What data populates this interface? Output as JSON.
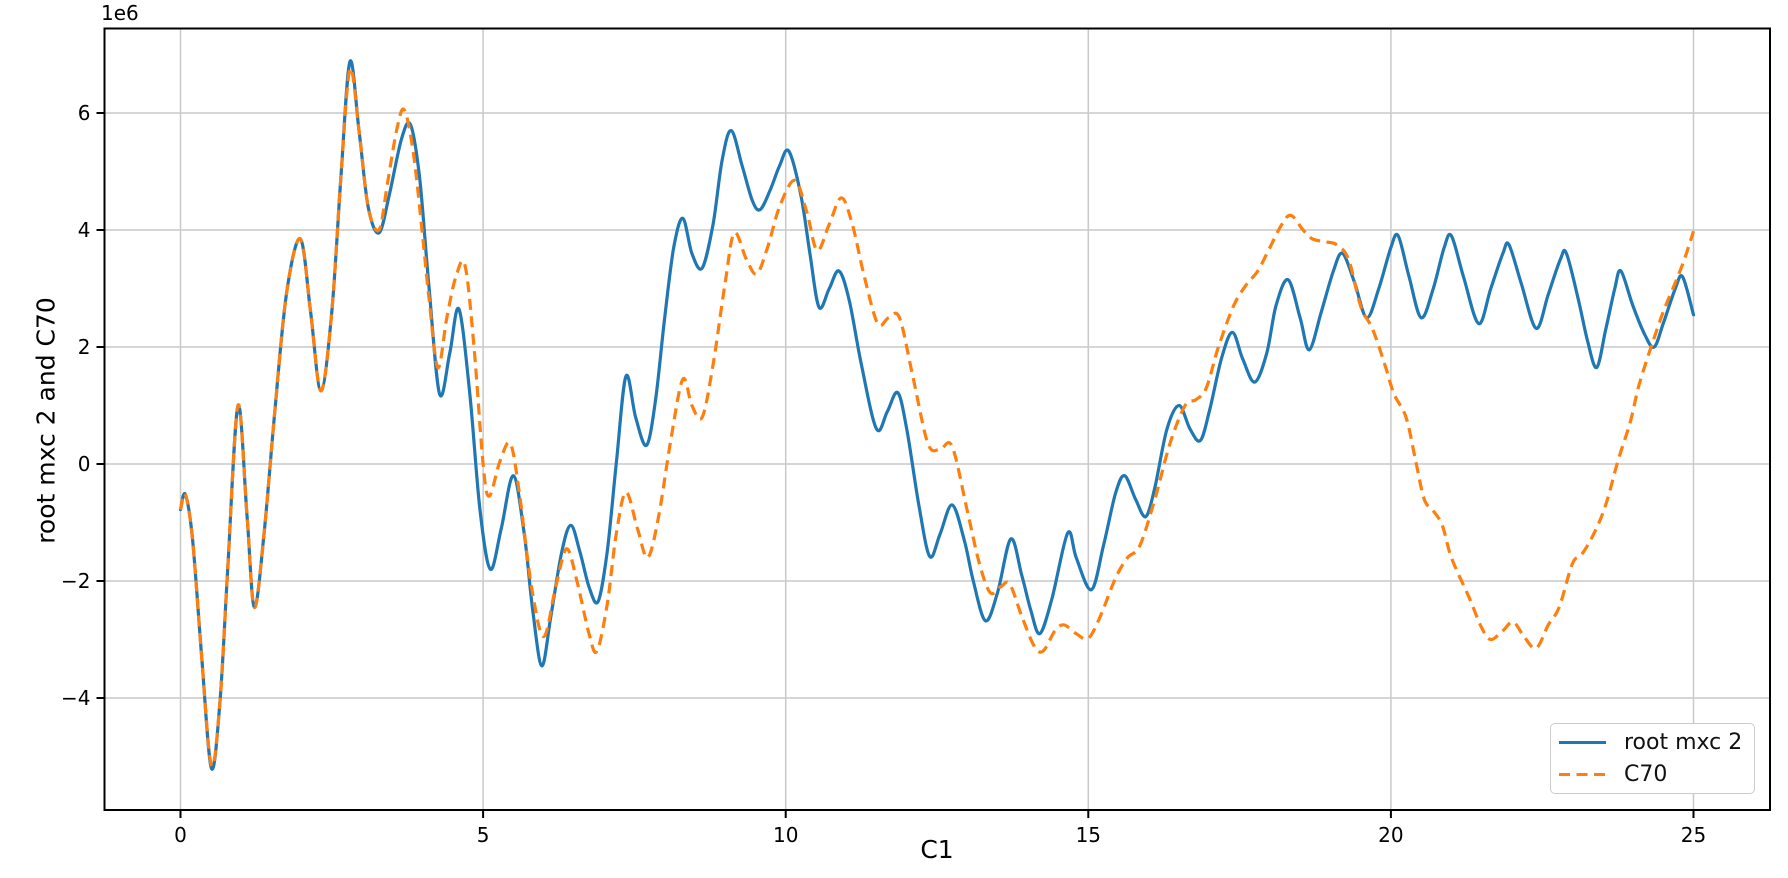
{
  "chart_data": {
    "type": "line",
    "title": "",
    "xlabel": "C1",
    "ylabel": "root mxc 2 and C70",
    "y_offset_text": "1e6",
    "y_unit_multiplier": 1000000,
    "xlim": [
      -1.24,
      26.27
    ],
    "ylim": [
      -5.92,
      7.45
    ],
    "x_ticks": [
      0,
      5,
      10,
      15,
      20,
      25
    ],
    "x_tick_labels": [
      "0",
      "5",
      "10",
      "15",
      "20",
      "25"
    ],
    "y_ticks": [
      6,
      4,
      2,
      0,
      -2,
      -4
    ],
    "y_tick_labels": [
      "6",
      "4",
      "2",
      "0",
      "−2",
      "−4"
    ],
    "grid": true,
    "colors": {
      "grid": "#c9c9c9",
      "spine": "#000000",
      "text": "#000000",
      "background": "#ffffff"
    },
    "legend": {
      "position": "lower right",
      "entries": [
        {
          "label": "root mxc 2",
          "color": "#1f77b4",
          "linestyle": "solid"
        },
        {
          "label": "C70",
          "color": "#ff7f0e",
          "linestyle": "dashed"
        }
      ]
    },
    "series": [
      {
        "name": "root mxc 2",
        "color": "#1f77b4",
        "linestyle": "solid",
        "points": [
          [
            0.0,
            -0.78
          ],
          [
            0.08,
            -0.52
          ],
          [
            0.2,
            -1.3
          ],
          [
            0.35,
            -3.3
          ],
          [
            0.51,
            -5.2
          ],
          [
            0.65,
            -4.1
          ],
          [
            0.78,
            -1.8
          ],
          [
            0.95,
            1.0
          ],
          [
            1.1,
            -0.9
          ],
          [
            1.22,
            -2.45
          ],
          [
            1.38,
            -1.2
          ],
          [
            1.55,
            0.8
          ],
          [
            1.75,
            2.9
          ],
          [
            1.98,
            3.85
          ],
          [
            2.15,
            2.6
          ],
          [
            2.32,
            1.25
          ],
          [
            2.5,
            2.6
          ],
          [
            2.65,
            4.9
          ],
          [
            2.8,
            6.88
          ],
          [
            2.95,
            5.7
          ],
          [
            3.1,
            4.4
          ],
          [
            3.28,
            3.95
          ],
          [
            3.45,
            4.6
          ],
          [
            3.65,
            5.55
          ],
          [
            3.8,
            5.8
          ],
          [
            3.95,
            4.9
          ],
          [
            4.1,
            3.1
          ],
          [
            4.28,
            1.2
          ],
          [
            4.45,
            1.9
          ],
          [
            4.6,
            2.65
          ],
          [
            4.78,
            1.2
          ],
          [
            4.95,
            -0.8
          ],
          [
            5.12,
            -1.8
          ],
          [
            5.3,
            -1.1
          ],
          [
            5.5,
            -0.2
          ],
          [
            5.68,
            -1.2
          ],
          [
            5.82,
            -2.5
          ],
          [
            5.97,
            -3.45
          ],
          [
            6.12,
            -2.6
          ],
          [
            6.3,
            -1.5
          ],
          [
            6.45,
            -1.05
          ],
          [
            6.6,
            -1.5
          ],
          [
            6.75,
            -2.1
          ],
          [
            6.9,
            -2.35
          ],
          [
            7.05,
            -1.5
          ],
          [
            7.2,
            0.0
          ],
          [
            7.36,
            1.5
          ],
          [
            7.52,
            0.8
          ],
          [
            7.7,
            0.32
          ],
          [
            7.85,
            1.1
          ],
          [
            8.0,
            2.5
          ],
          [
            8.15,
            3.7
          ],
          [
            8.3,
            4.2
          ],
          [
            8.45,
            3.6
          ],
          [
            8.62,
            3.35
          ],
          [
            8.8,
            4.1
          ],
          [
            8.95,
            5.2
          ],
          [
            9.1,
            5.7
          ],
          [
            9.28,
            5.1
          ],
          [
            9.45,
            4.5
          ],
          [
            9.58,
            4.35
          ],
          [
            9.75,
            4.7
          ],
          [
            9.9,
            5.1
          ],
          [
            10.05,
            5.35
          ],
          [
            10.25,
            4.6
          ],
          [
            10.4,
            3.6
          ],
          [
            10.55,
            2.68
          ],
          [
            10.72,
            3.0
          ],
          [
            10.88,
            3.3
          ],
          [
            11.05,
            2.8
          ],
          [
            11.25,
            1.7
          ],
          [
            11.5,
            0.6
          ],
          [
            11.68,
            0.9
          ],
          [
            11.85,
            1.22
          ],
          [
            12.0,
            0.6
          ],
          [
            12.2,
            -0.7
          ],
          [
            12.38,
            -1.58
          ],
          [
            12.55,
            -1.2
          ],
          [
            12.75,
            -0.7
          ],
          [
            12.95,
            -1.3
          ],
          [
            13.1,
            -2.0
          ],
          [
            13.3,
            -2.68
          ],
          [
            13.5,
            -2.2
          ],
          [
            13.72,
            -1.28
          ],
          [
            13.9,
            -1.9
          ],
          [
            14.05,
            -2.5
          ],
          [
            14.2,
            -2.9
          ],
          [
            14.4,
            -2.3
          ],
          [
            14.66,
            -1.18
          ],
          [
            14.8,
            -1.6
          ],
          [
            15.05,
            -2.15
          ],
          [
            15.25,
            -1.4
          ],
          [
            15.45,
            -0.5
          ],
          [
            15.6,
            -0.2
          ],
          [
            15.78,
            -0.6
          ],
          [
            15.95,
            -0.9
          ],
          [
            16.1,
            -0.4
          ],
          [
            16.3,
            0.6
          ],
          [
            16.5,
            1.0
          ],
          [
            16.68,
            0.6
          ],
          [
            16.85,
            0.4
          ],
          [
            17.0,
            0.9
          ],
          [
            17.2,
            1.8
          ],
          [
            17.38,
            2.25
          ],
          [
            17.55,
            1.8
          ],
          [
            17.75,
            1.4
          ],
          [
            17.95,
            1.9
          ],
          [
            18.1,
            2.7
          ],
          [
            18.3,
            3.15
          ],
          [
            18.5,
            2.5
          ],
          [
            18.65,
            1.95
          ],
          [
            18.85,
            2.6
          ],
          [
            19.05,
            3.3
          ],
          [
            19.2,
            3.6
          ],
          [
            19.4,
            3.1
          ],
          [
            19.6,
            2.5
          ],
          [
            19.8,
            3.0
          ],
          [
            20.0,
            3.7
          ],
          [
            20.12,
            3.9
          ],
          [
            20.3,
            3.2
          ],
          [
            20.5,
            2.5
          ],
          [
            20.7,
            3.0
          ],
          [
            20.88,
            3.7
          ],
          [
            21.0,
            3.9
          ],
          [
            21.2,
            3.2
          ],
          [
            21.45,
            2.4
          ],
          [
            21.65,
            3.0
          ],
          [
            21.85,
            3.6
          ],
          [
            21.95,
            3.75
          ],
          [
            22.15,
            3.1
          ],
          [
            22.4,
            2.32
          ],
          [
            22.6,
            2.9
          ],
          [
            22.8,
            3.5
          ],
          [
            22.9,
            3.6
          ],
          [
            23.1,
            2.8
          ],
          [
            23.25,
            2.1
          ],
          [
            23.4,
            1.65
          ],
          [
            23.55,
            2.3
          ],
          [
            23.7,
            3.0
          ],
          [
            23.8,
            3.3
          ],
          [
            24.0,
            2.7
          ],
          [
            24.2,
            2.2
          ],
          [
            24.35,
            2.0
          ],
          [
            24.5,
            2.4
          ],
          [
            24.7,
            3.0
          ],
          [
            24.82,
            3.2
          ],
          [
            25.0,
            2.55
          ]
        ]
      },
      {
        "name": "C70",
        "color": "#ff7f0e",
        "linestyle": "dashed",
        "points": [
          [
            0.0,
            -0.78
          ],
          [
            0.08,
            -0.52
          ],
          [
            0.2,
            -1.3
          ],
          [
            0.35,
            -3.3
          ],
          [
            0.51,
            -5.15
          ],
          [
            0.65,
            -4.1
          ],
          [
            0.78,
            -1.8
          ],
          [
            0.95,
            1.0
          ],
          [
            1.1,
            -0.9
          ],
          [
            1.22,
            -2.45
          ],
          [
            1.38,
            -1.2
          ],
          [
            1.55,
            0.8
          ],
          [
            1.75,
            2.9
          ],
          [
            1.98,
            3.85
          ],
          [
            2.15,
            2.6
          ],
          [
            2.32,
            1.25
          ],
          [
            2.5,
            2.6
          ],
          [
            2.65,
            4.9
          ],
          [
            2.8,
            6.75
          ],
          [
            2.95,
            5.7
          ],
          [
            3.1,
            4.4
          ],
          [
            3.28,
            4.0
          ],
          [
            3.42,
            4.8
          ],
          [
            3.58,
            5.75
          ],
          [
            3.7,
            6.05
          ],
          [
            3.85,
            5.3
          ],
          [
            4.0,
            3.9
          ],
          [
            4.1,
            2.9
          ],
          [
            4.25,
            1.65
          ],
          [
            4.4,
            2.5
          ],
          [
            4.55,
            3.2
          ],
          [
            4.7,
            3.4
          ],
          [
            4.85,
            2.0
          ],
          [
            5.0,
            0.0
          ],
          [
            5.1,
            -0.55
          ],
          [
            5.28,
            0.05
          ],
          [
            5.45,
            0.35
          ],
          [
            5.6,
            -0.5
          ],
          [
            5.8,
            -2.1
          ],
          [
            6.0,
            -2.95
          ],
          [
            6.2,
            -2.1
          ],
          [
            6.38,
            -1.45
          ],
          [
            6.55,
            -2.0
          ],
          [
            6.75,
            -2.9
          ],
          [
            6.88,
            -3.2
          ],
          [
            7.05,
            -2.4
          ],
          [
            7.2,
            -1.2
          ],
          [
            7.36,
            -0.48
          ],
          [
            7.55,
            -1.1
          ],
          [
            7.72,
            -1.6
          ],
          [
            7.9,
            -0.9
          ],
          [
            8.1,
            0.4
          ],
          [
            8.3,
            1.45
          ],
          [
            8.45,
            1.0
          ],
          [
            8.62,
            0.8
          ],
          [
            8.8,
            1.7
          ],
          [
            9.0,
            3.1
          ],
          [
            9.15,
            3.95
          ],
          [
            9.35,
            3.5
          ],
          [
            9.52,
            3.25
          ],
          [
            9.7,
            3.7
          ],
          [
            9.9,
            4.4
          ],
          [
            10.15,
            4.85
          ],
          [
            10.35,
            4.3
          ],
          [
            10.52,
            3.65
          ],
          [
            10.72,
            4.1
          ],
          [
            10.92,
            4.55
          ],
          [
            11.1,
            4.1
          ],
          [
            11.3,
            3.2
          ],
          [
            11.52,
            2.4
          ],
          [
            11.7,
            2.5
          ],
          [
            11.88,
            2.5
          ],
          [
            12.1,
            1.5
          ],
          [
            12.35,
            0.35
          ],
          [
            12.55,
            0.25
          ],
          [
            12.75,
            0.3
          ],
          [
            13.0,
            -0.8
          ],
          [
            13.2,
            -1.7
          ],
          [
            13.38,
            -2.2
          ],
          [
            13.55,
            -2.1
          ],
          [
            13.7,
            -2.05
          ],
          [
            13.9,
            -2.6
          ],
          [
            14.1,
            -3.1
          ],
          [
            14.25,
            -3.2
          ],
          [
            14.45,
            -2.85
          ],
          [
            14.6,
            -2.75
          ],
          [
            14.8,
            -2.9
          ],
          [
            15.0,
            -2.98
          ],
          [
            15.2,
            -2.6
          ],
          [
            15.45,
            -1.95
          ],
          [
            15.65,
            -1.6
          ],
          [
            15.85,
            -1.4
          ],
          [
            16.1,
            -0.6
          ],
          [
            16.35,
            0.35
          ],
          [
            16.6,
            1.0
          ],
          [
            16.78,
            1.1
          ],
          [
            16.95,
            1.3
          ],
          [
            17.15,
            2.0
          ],
          [
            17.4,
            2.7
          ],
          [
            17.6,
            3.05
          ],
          [
            17.8,
            3.3
          ],
          [
            18.0,
            3.7
          ],
          [
            18.2,
            4.1
          ],
          [
            18.35,
            4.25
          ],
          [
            18.55,
            4.0
          ],
          [
            18.7,
            3.85
          ],
          [
            18.9,
            3.8
          ],
          [
            19.1,
            3.75
          ],
          [
            19.3,
            3.5
          ],
          [
            19.5,
            2.7
          ],
          [
            19.7,
            2.3
          ],
          [
            19.9,
            1.7
          ],
          [
            20.05,
            1.2
          ],
          [
            20.25,
            0.8
          ],
          [
            20.4,
            0.1
          ],
          [
            20.55,
            -0.6
          ],
          [
            20.7,
            -0.8
          ],
          [
            20.85,
            -1.05
          ],
          [
            21.0,
            -1.6
          ],
          [
            21.3,
            -2.3
          ],
          [
            21.5,
            -2.8
          ],
          [
            21.65,
            -3.0
          ],
          [
            21.85,
            -2.85
          ],
          [
            22.02,
            -2.7
          ],
          [
            22.2,
            -2.95
          ],
          [
            22.4,
            -3.15
          ],
          [
            22.6,
            -2.75
          ],
          [
            22.78,
            -2.45
          ],
          [
            23.0,
            -1.7
          ],
          [
            23.15,
            -1.55
          ],
          [
            23.35,
            -1.2
          ],
          [
            23.55,
            -0.7
          ],
          [
            23.75,
            0.05
          ],
          [
            23.95,
            0.7
          ],
          [
            24.1,
            1.35
          ],
          [
            24.3,
            2.0
          ],
          [
            24.5,
            2.6
          ],
          [
            24.7,
            3.1
          ],
          [
            24.85,
            3.5
          ],
          [
            25.0,
            3.98
          ]
        ]
      }
    ]
  }
}
